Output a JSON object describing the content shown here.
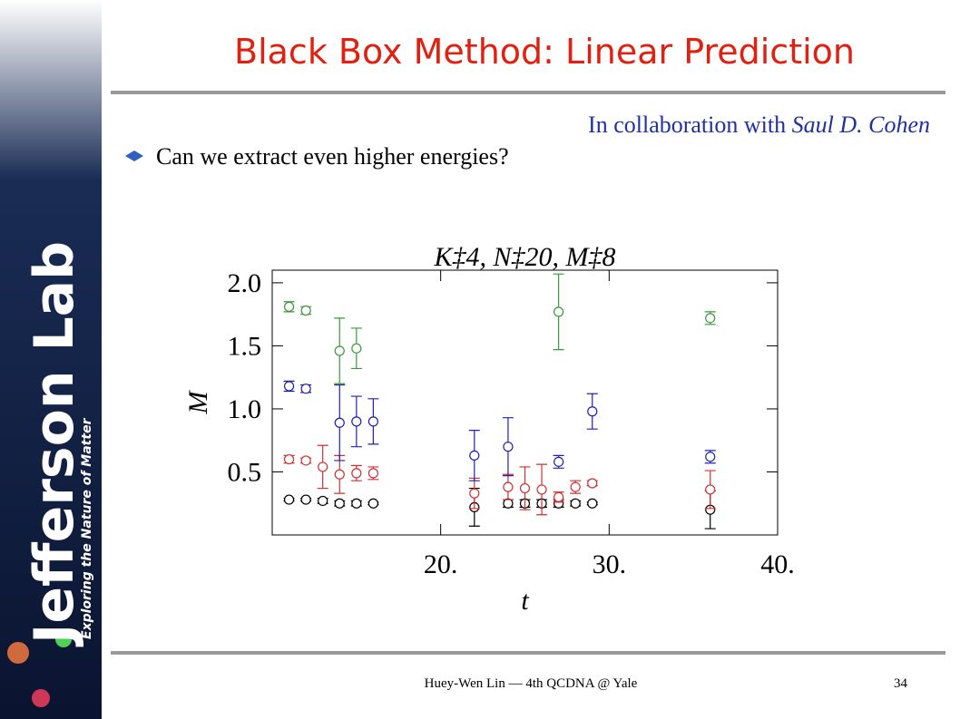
{
  "slide": {
    "title": "Black Box Method: Linear Prediction",
    "credit": "In collaboration with",
    "credit_name": "Saul D. Cohen",
    "bullet": "Can we extract even higher energies?",
    "footer": "Huey-Wen Lin — 4th QCDNA @ Yale",
    "page": "34",
    "logo": "Jefferson Lab",
    "logo_tagline": "Exploring the Nature of Matter"
  },
  "chart_data": {
    "type": "scatter",
    "title": "K‡4, N‡20, M‡8",
    "x_label": "t",
    "y_label": "M",
    "xlim": [
      10,
      40
    ],
    "ylim": [
      0,
      2.1
    ],
    "xticks": [
      {
        "value": 20,
        "label": "20."
      },
      {
        "value": 30,
        "label": "30."
      },
      {
        "value": 40,
        "label": "40."
      }
    ],
    "yticks": [
      0.5,
      {
        "value": 1,
        "label": "1.0"
      },
      1.5,
      {
        "value": 2,
        "label": "2.0"
      }
    ],
    "series": [
      {
        "color": "#000000",
        "x": [
          11,
          12,
          13,
          14,
          15,
          16,
          22,
          24,
          25,
          26,
          27,
          28,
          29,
          36
        ],
        "values": [
          0.28,
          0.28,
          0.27,
          0.25,
          0.25,
          0.25,
          0.22,
          0.25,
          0.25,
          0.25,
          0.25,
          0.25,
          0.25,
          0.2
        ],
        "errors": [
          0.01,
          0.01,
          0.02,
          0.02,
          0.02,
          0.01,
          0.15,
          0.03,
          0.03,
          0.03,
          0.03,
          0.02,
          0.01,
          0.15
        ]
      },
      {
        "color": "#d03030",
        "x": [
          11,
          12,
          13,
          14,
          15,
          16,
          22,
          24,
          25,
          26,
          27,
          28,
          29,
          36
        ],
        "values": [
          0.6,
          0.59,
          0.54,
          0.48,
          0.49,
          0.49,
          0.33,
          0.38,
          0.37,
          0.36,
          0.3,
          0.38,
          0.41,
          0.36
        ],
        "errors": [
          0.03,
          0.02,
          0.17,
          0.15,
          0.06,
          0.05,
          0.12,
          0.1,
          0.17,
          0.2,
          0.04,
          0.05,
          0.02,
          0.15
        ]
      },
      {
        "color": "#2020b0",
        "x": [
          11,
          12,
          14,
          15,
          16,
          22,
          24,
          27,
          29,
          36
        ],
        "values": [
          1.18,
          1.16,
          0.89,
          0.9,
          0.9,
          0.63,
          0.7,
          0.58,
          0.98,
          0.62
        ],
        "errors": [
          0.04,
          0.03,
          0.3,
          0.2,
          0.18,
          0.2,
          0.23,
          0.05,
          0.14,
          0.05
        ]
      },
      {
        "color": "#3a9a3a",
        "x": [
          11,
          12,
          14,
          15,
          27,
          36
        ],
        "values": [
          1.81,
          1.78,
          1.46,
          1.48,
          1.77,
          1.72
        ],
        "errors": [
          0.04,
          0.03,
          0.26,
          0.16,
          0.3,
          0.05
        ]
      }
    ]
  }
}
